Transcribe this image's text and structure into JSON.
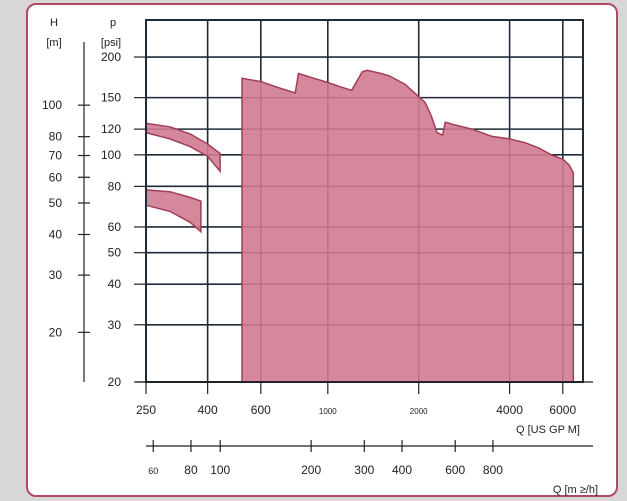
{
  "chart_data": {
    "type": "area",
    "colors": {
      "fill": "#d07a90",
      "stroke": "#a23e58",
      "grid": "#1f2a3a",
      "frame": "#b14b62"
    },
    "log_scale": true,
    "grid": true,
    "axes": {
      "h": {
        "label_line1": "H",
        "label_line2": "[m]",
        "ticks": [
          {
            "label": "100",
            "v": 100
          },
          {
            "label": "80",
            "v": 80
          },
          {
            "label": "70",
            "v": 70
          },
          {
            "label": "60",
            "v": 60
          },
          {
            "label": "50",
            "v": 50
          },
          {
            "label": "40",
            "v": 40
          },
          {
            "label": "30",
            "v": 30
          },
          {
            "label": "20",
            "v": 20
          }
        ]
      },
      "p": {
        "label_line1": "p",
        "label_line2": "[psi]",
        "range": [
          20,
          260
        ],
        "ticks": [
          {
            "label": "200",
            "v": 200
          },
          {
            "label": "150",
            "v": 150
          },
          {
            "label": "120",
            "v": 120
          },
          {
            "label": "100",
            "v": 100
          },
          {
            "label": "80",
            "v": 80
          },
          {
            "label": "60",
            "v": 60
          },
          {
            "label": "50",
            "v": 50
          },
          {
            "label": "40",
            "v": 40
          },
          {
            "label": "30",
            "v": 30
          },
          {
            "label": "20",
            "v": 20
          }
        ]
      },
      "q_usgpm": {
        "label": "Q [US GP M]",
        "range": [
          250,
          7000
        ],
        "ticks": [
          {
            "label": "250",
            "v": 250
          },
          {
            "label": "400",
            "v": 400
          },
          {
            "label": "600",
            "v": 600
          },
          {
            "label": "1000",
            "v": 1000
          },
          {
            "label": "2000",
            "v": 2000
          },
          {
            "label": "4000",
            "v": 4000
          },
          {
            "label": "6000",
            "v": 6000
          }
        ]
      },
      "q_m3h": {
        "label": "Q [m ≥/h]",
        "ticks": [
          {
            "label": "60",
            "v": 60
          },
          {
            "label": "80",
            "v": 80
          },
          {
            "label": "100",
            "v": 100
          },
          {
            "label": "200",
            "v": 200
          },
          {
            "label": "300",
            "v": 300
          },
          {
            "label": "400",
            "v": 400
          },
          {
            "label": "600",
            "v": 600
          },
          {
            "label": "800",
            "v": 800
          }
        ]
      }
    },
    "regions": [
      {
        "points": [
          [
            250,
            125
          ],
          [
            300,
            122
          ],
          [
            350,
            116
          ],
          [
            400,
            108
          ],
          [
            440,
            101
          ],
          [
            440,
            89
          ],
          [
            400,
            99
          ],
          [
            350,
            106
          ],
          [
            300,
            112
          ],
          [
            250,
            117
          ]
        ]
      },
      {
        "points": [
          [
            250,
            78
          ],
          [
            300,
            77
          ],
          [
            350,
            74
          ],
          [
            380,
            72
          ],
          [
            380,
            58
          ],
          [
            350,
            62
          ],
          [
            300,
            67
          ],
          [
            250,
            70
          ]
        ]
      },
      {
        "points": [
          [
            520,
            20
          ],
          [
            520,
            172
          ],
          [
            600,
            168
          ],
          [
            700,
            160
          ],
          [
            780,
            155
          ],
          [
            800,
            178
          ],
          [
            900,
            172
          ],
          [
            1000,
            167
          ],
          [
            1100,
            162
          ],
          [
            1200,
            158
          ],
          [
            1300,
            180
          ],
          [
            1350,
            182
          ],
          [
            1500,
            178
          ],
          [
            1600,
            175
          ],
          [
            1800,
            165
          ],
          [
            2100,
            145
          ],
          [
            2200,
            132
          ],
          [
            2300,
            117
          ],
          [
            2400,
            115
          ],
          [
            2450,
            126
          ],
          [
            2600,
            124
          ],
          [
            3000,
            120
          ],
          [
            3500,
            114
          ],
          [
            4000,
            112
          ],
          [
            4500,
            109
          ],
          [
            5000,
            105
          ],
          [
            5500,
            100
          ],
          [
            6000,
            97
          ],
          [
            6300,
            93
          ],
          [
            6500,
            88
          ],
          [
            6500,
            20
          ]
        ]
      }
    ]
  }
}
